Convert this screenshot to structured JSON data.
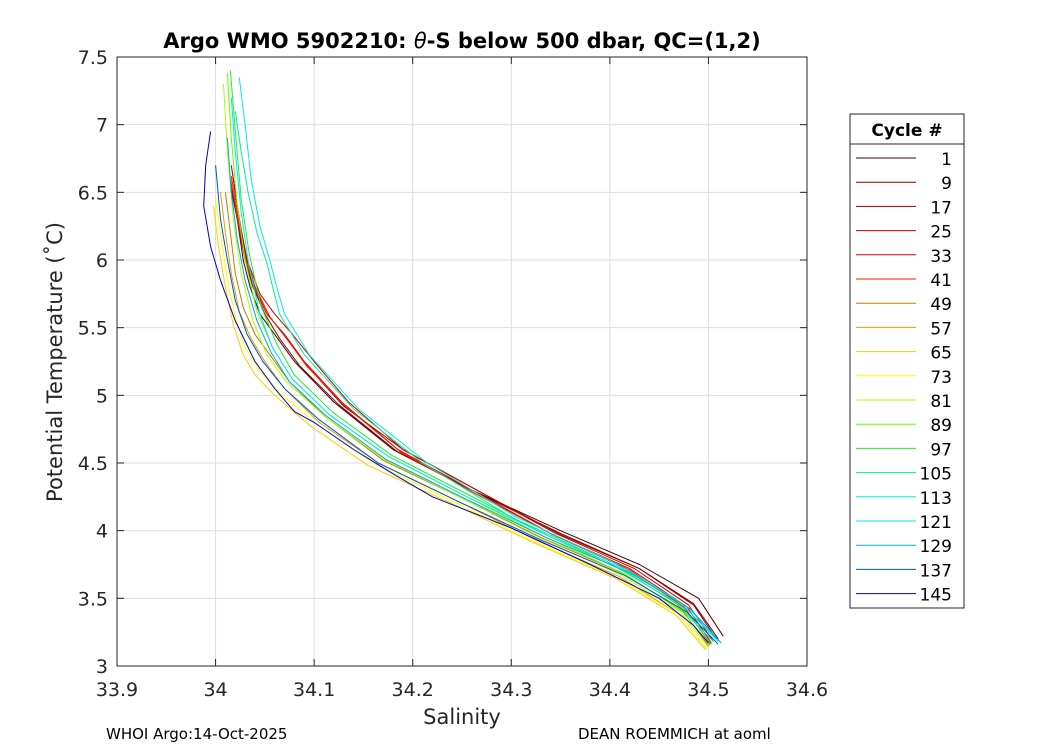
{
  "chart_data": {
    "type": "line",
    "title": "Argo WMO 5902210: θ-S below 500 dbar,  QC=(1,2)",
    "title_parts": {
      "prefix": "Argo WMO 5902210: ",
      "symbol": "θ",
      "suffix": "-S below 500 dbar,  QC=(1,2)"
    },
    "xlabel": "Salinity",
    "ylabel": "Potential Temperature (˚C)",
    "xlim": [
      33.9,
      34.6
    ],
    "ylim": [
      3,
      7.5
    ],
    "xticks": [
      33.9,
      34.0,
      34.1,
      34.2,
      34.3,
      34.4,
      34.5,
      34.6
    ],
    "xtick_labels": [
      "33.9",
      "34",
      "34.1",
      "34.2",
      "34.3",
      "34.4",
      "34.5",
      "34.6"
    ],
    "yticks": [
      3,
      3.5,
      4,
      4.5,
      5,
      5.5,
      6,
      6.5,
      7,
      7.5
    ],
    "ytick_labels": [
      "3",
      "3.5",
      "4",
      "4.5",
      "5",
      "5.5",
      "6",
      "6.5",
      "7",
      "7.5"
    ],
    "grid": true,
    "legend": {
      "title": "Cycle #",
      "placement": "right",
      "entries": [
        {
          "label": "1",
          "color": "#4d0000"
        },
        {
          "label": "9",
          "color": "#800000"
        },
        {
          "label": "17",
          "color": "#990000"
        },
        {
          "label": "25",
          "color": "#c80000"
        },
        {
          "label": "33",
          "color": "#e00000"
        },
        {
          "label": "41",
          "color": "#f02000"
        },
        {
          "label": "49",
          "color": "#c87800"
        },
        {
          "label": "57",
          "color": "#e0a000"
        },
        {
          "label": "65",
          "color": "#ffcc00"
        },
        {
          "label": "73",
          "color": "#ffff00"
        },
        {
          "label": "81",
          "color": "#aaff00"
        },
        {
          "label": "89",
          "color": "#66ff00"
        },
        {
          "label": "97",
          "color": "#22ee22"
        },
        {
          "label": "105",
          "color": "#00ee99"
        },
        {
          "label": "113",
          "color": "#00eedd"
        },
        {
          "label": "121",
          "color": "#00e5ff"
        },
        {
          "label": "129",
          "color": "#00aadd"
        },
        {
          "label": "137",
          "color": "#0055cc"
        },
        {
          "label": "145",
          "color": "#0000cc"
        }
      ]
    },
    "series": [
      {
        "cycle": "1",
        "color": "#4d0000",
        "x": [
          34.015,
          34.022,
          34.028,
          34.035,
          34.045,
          34.06,
          34.08,
          34.12,
          34.18,
          34.26,
          34.35,
          34.43,
          34.49,
          34.515
        ],
        "y": [
          6.55,
          6.3,
          6.0,
          5.8,
          5.6,
          5.45,
          5.25,
          4.95,
          4.6,
          4.3,
          4.0,
          3.75,
          3.5,
          3.22
        ]
      },
      {
        "cycle": "9",
        "color": "#800000",
        "x": [
          34.018,
          34.024,
          34.03,
          34.038,
          34.05,
          34.065,
          34.085,
          34.125,
          34.185,
          34.265,
          34.35,
          34.43,
          34.485,
          34.51
        ],
        "y": [
          6.6,
          6.3,
          6.0,
          5.8,
          5.6,
          5.42,
          5.22,
          4.93,
          4.58,
          4.28,
          3.98,
          3.72,
          3.46,
          3.2
        ]
      },
      {
        "cycle": "17",
        "color": "#990000",
        "x": [
          34.016,
          34.022,
          34.03,
          34.04,
          34.055,
          34.072,
          34.095,
          34.13,
          34.19,
          34.27,
          34.35,
          34.43,
          34.485,
          34.508
        ],
        "y": [
          6.7,
          6.4,
          6.05,
          5.8,
          5.58,
          5.42,
          5.2,
          4.92,
          4.6,
          4.28,
          3.97,
          3.72,
          3.45,
          3.2
        ]
      },
      {
        "cycle": "25",
        "color": "#c80000",
        "x": [
          34.017,
          34.024,
          34.032,
          34.045,
          34.06,
          34.078,
          34.1,
          34.135,
          34.19,
          34.265,
          34.345,
          34.425,
          34.48,
          34.505
        ],
        "y": [
          6.65,
          6.3,
          6.0,
          5.75,
          5.6,
          5.45,
          5.25,
          4.95,
          4.6,
          4.3,
          3.98,
          3.72,
          3.45,
          3.18
        ]
      },
      {
        "cycle": "33",
        "color": "#e00000",
        "x": [
          34.015,
          34.022,
          34.03,
          34.04,
          34.052,
          34.07,
          34.09,
          34.128,
          34.185,
          34.26,
          34.34,
          34.42,
          34.478,
          34.503
        ],
        "y": [
          6.6,
          6.3,
          6.0,
          5.78,
          5.6,
          5.45,
          5.25,
          4.95,
          4.6,
          4.3,
          3.98,
          3.72,
          3.44,
          3.17
        ]
      },
      {
        "cycle": "41",
        "color": "#f02000",
        "x": [
          34.016,
          34.023,
          34.031,
          34.042,
          34.055,
          34.072,
          34.092,
          34.13,
          34.188,
          34.262,
          34.342,
          34.42,
          34.476,
          34.502
        ],
        "y": [
          6.62,
          6.3,
          6.0,
          5.76,
          5.58,
          5.42,
          5.22,
          4.93,
          4.58,
          4.28,
          3.97,
          3.71,
          3.43,
          3.16
        ]
      },
      {
        "cycle": "49",
        "color": "#c87800",
        "x": [
          34.01,
          34.015,
          34.02,
          34.028,
          34.04,
          34.055,
          34.075,
          34.11,
          34.17,
          34.25,
          34.33,
          34.415,
          34.475,
          34.5
        ],
        "y": [
          6.5,
          6.2,
          5.9,
          5.65,
          5.45,
          5.3,
          5.1,
          4.85,
          4.52,
          4.24,
          3.95,
          3.68,
          3.4,
          3.15
        ]
      },
      {
        "cycle": "57",
        "color": "#e0a000",
        "x": [
          34.005,
          34.01,
          34.016,
          34.024,
          34.036,
          34.05,
          34.07,
          34.105,
          34.165,
          34.245,
          34.325,
          34.41,
          34.47,
          34.498
        ],
        "y": [
          6.5,
          6.2,
          5.9,
          5.62,
          5.42,
          5.25,
          5.05,
          4.8,
          4.5,
          4.22,
          3.93,
          3.66,
          3.38,
          3.13
        ]
      },
      {
        "cycle": "65",
        "color": "#ffcc00",
        "x": [
          33.998,
          34.003,
          34.01,
          34.018,
          34.028,
          34.04,
          34.06,
          34.095,
          34.155,
          34.24,
          34.32,
          34.405,
          34.468,
          34.497
        ],
        "y": [
          6.4,
          6.1,
          5.8,
          5.52,
          5.3,
          5.15,
          5.0,
          4.78,
          4.48,
          4.2,
          3.92,
          3.65,
          3.37,
          3.12
        ]
      },
      {
        "cycle": "73",
        "color": "#ffff00",
        "x": [
          34.0,
          34.006,
          34.012,
          34.02,
          34.03,
          34.045,
          34.065,
          34.1,
          34.16,
          34.24,
          34.32,
          34.405,
          34.47,
          34.498
        ],
        "y": [
          6.45,
          6.15,
          5.85,
          5.58,
          5.35,
          5.18,
          5.02,
          4.8,
          4.5,
          4.22,
          3.93,
          3.66,
          3.38,
          3.13
        ]
      },
      {
        "cycle": "81",
        "color": "#aaff00",
        "x": [
          34.008,
          34.012,
          34.018,
          34.026,
          34.038,
          34.052,
          34.072,
          34.11,
          34.17,
          34.25,
          34.33,
          34.412,
          34.472,
          34.5
        ],
        "y": [
          7.3,
          6.8,
          6.3,
          5.9,
          5.55,
          5.3,
          5.1,
          4.85,
          4.53,
          4.24,
          3.94,
          3.67,
          3.4,
          3.14
        ]
      },
      {
        "cycle": "89",
        "color": "#66ff00",
        "x": [
          34.012,
          34.016,
          34.022,
          34.03,
          34.042,
          34.058,
          34.078,
          34.115,
          34.175,
          34.255,
          34.335,
          34.415,
          34.474,
          34.502
        ],
        "y": [
          7.38,
          6.9,
          6.4,
          6.0,
          5.62,
          5.35,
          5.12,
          4.86,
          4.55,
          4.25,
          3.95,
          3.68,
          3.4,
          3.15
        ]
      },
      {
        "cycle": "97",
        "color": "#22ee22",
        "x": [
          34.015,
          34.02,
          34.026,
          34.034,
          34.046,
          34.062,
          34.08,
          34.118,
          34.178,
          34.258,
          34.338,
          34.418,
          34.476,
          34.503
        ],
        "y": [
          7.4,
          6.95,
          6.45,
          6.05,
          5.66,
          5.38,
          5.15,
          4.88,
          4.56,
          4.26,
          3.96,
          3.69,
          3.42,
          3.16
        ]
      },
      {
        "cycle": "105",
        "color": "#00ee99",
        "x": [
          34.02,
          34.026,
          34.033,
          34.042,
          34.052,
          34.058,
          34.065,
          34.09,
          34.14,
          34.21,
          34.3,
          34.395,
          34.465,
          34.505
        ],
        "y": [
          7.1,
          6.8,
          6.5,
          6.2,
          5.98,
          5.8,
          5.6,
          5.3,
          4.9,
          4.5,
          4.1,
          3.78,
          3.48,
          3.18
        ]
      },
      {
        "cycle": "113",
        "color": "#00eedd",
        "x": [
          34.024,
          34.03,
          34.036,
          34.045,
          34.055,
          34.062,
          34.07,
          34.095,
          34.145,
          34.215,
          34.305,
          34.4,
          34.47,
          34.51
        ],
        "y": [
          7.35,
          7.0,
          6.6,
          6.25,
          6.0,
          5.8,
          5.6,
          5.3,
          4.9,
          4.5,
          4.1,
          3.78,
          3.48,
          3.18
        ]
      },
      {
        "cycle": "121",
        "color": "#00e5ff",
        "x": [
          34.016,
          34.02,
          34.026,
          34.034,
          34.045,
          34.058,
          34.078,
          34.115,
          34.175,
          34.255,
          34.338,
          34.42,
          34.48,
          34.51
        ],
        "y": [
          7.2,
          6.8,
          6.35,
          5.95,
          5.6,
          5.35,
          5.12,
          4.86,
          4.55,
          4.25,
          3.96,
          3.7,
          3.43,
          3.18
        ]
      },
      {
        "cycle": "129",
        "color": "#00aadd",
        "x": [
          34.012,
          34.016,
          34.022,
          34.03,
          34.042,
          34.056,
          34.075,
          34.112,
          34.172,
          34.252,
          34.335,
          34.42,
          34.482,
          34.513
        ],
        "y": [
          6.9,
          6.5,
          6.15,
          5.85,
          5.55,
          5.32,
          5.1,
          4.85,
          4.53,
          4.24,
          3.95,
          3.69,
          3.42,
          3.17
        ]
      },
      {
        "cycle": "137",
        "color": "#0055cc",
        "x": [
          34.0,
          34.005,
          34.012,
          34.02,
          34.032,
          34.048,
          34.07,
          34.105,
          34.165,
          34.245,
          34.33,
          34.415,
          34.478,
          34.51
        ],
        "y": [
          6.7,
          6.3,
          6.0,
          5.7,
          5.45,
          5.25,
          5.05,
          4.82,
          4.5,
          4.22,
          3.93,
          3.67,
          3.4,
          3.16
        ]
      },
      {
        "cycle": "145",
        "color": "#0000cc",
        "x": [
          33.995,
          33.99,
          33.988,
          33.995,
          34.005,
          34.02,
          34.04,
          34.06,
          34.08,
          34.1,
          34.14,
          34.18,
          34.22,
          34.3,
          34.38,
          34.45,
          34.485,
          34.5
        ],
        "y": [
          6.95,
          6.7,
          6.4,
          6.1,
          5.85,
          5.55,
          5.25,
          5.05,
          4.88,
          4.8,
          4.6,
          4.42,
          4.25,
          4.02,
          3.75,
          3.5,
          3.3,
          3.17
        ]
      }
    ]
  },
  "footer": {
    "left": "WHOI Argo:14-Oct-2025",
    "right": "DEAN ROEMMICH at aoml"
  }
}
